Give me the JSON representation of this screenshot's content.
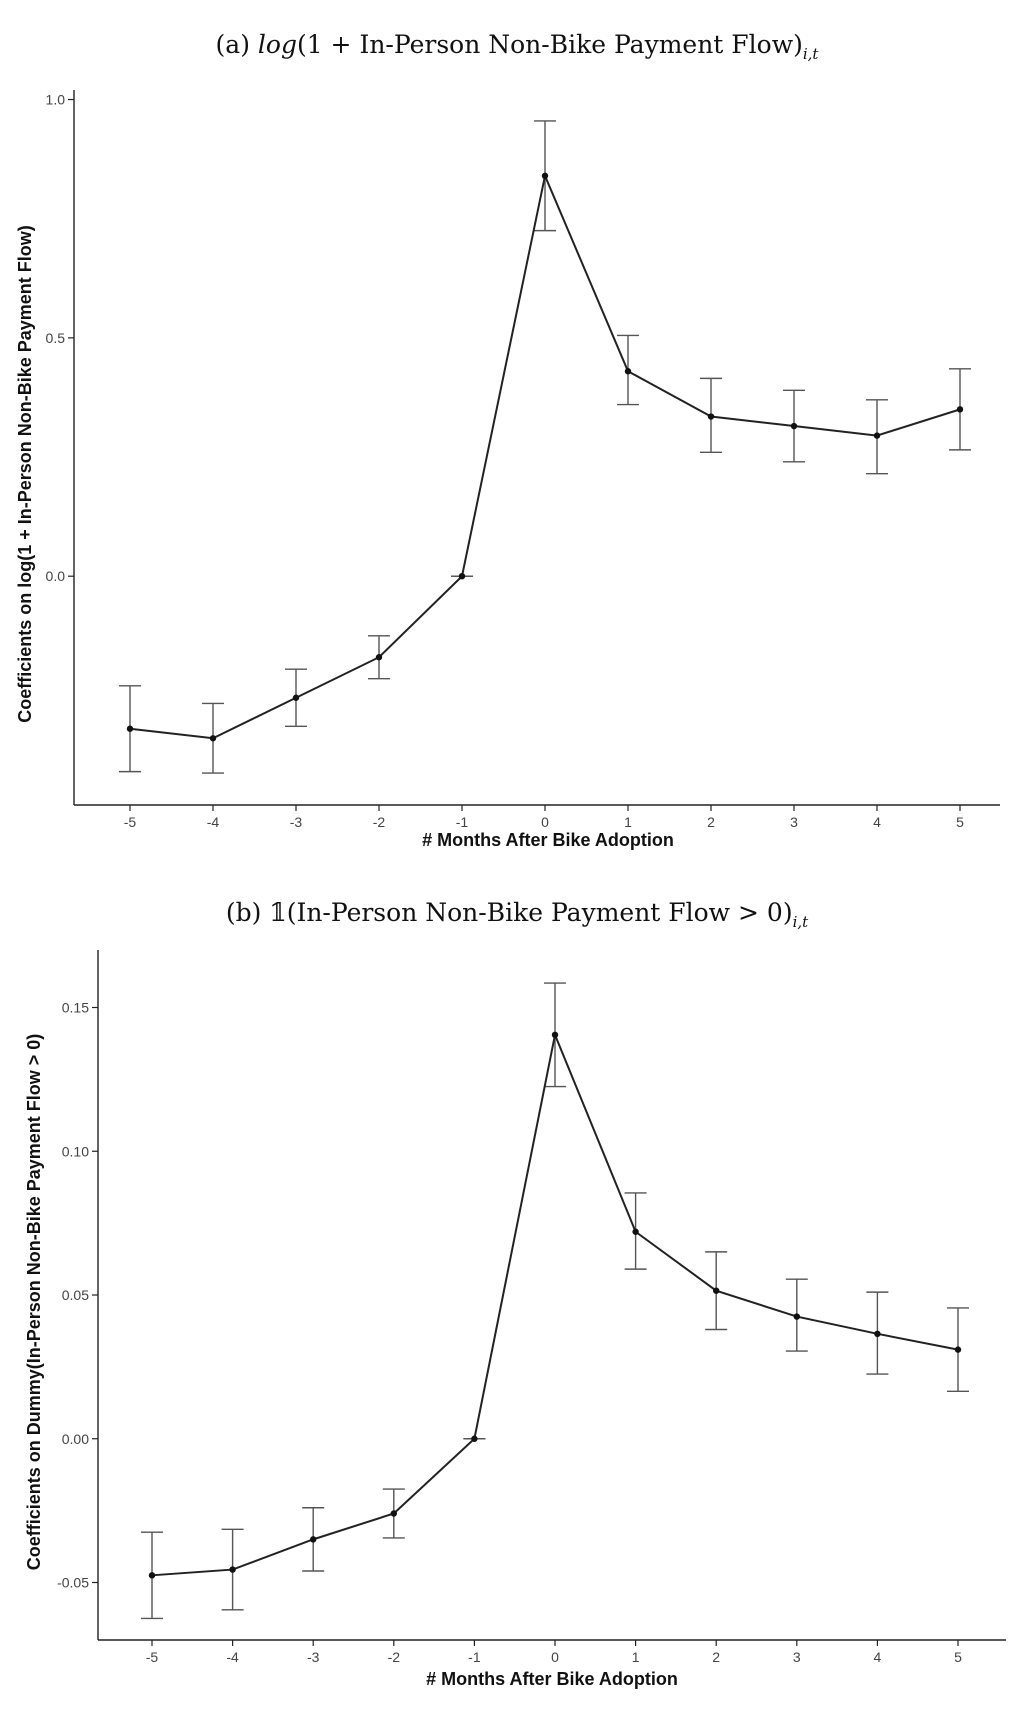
{
  "panels": [
    {
      "caption_prefix": "(a) ",
      "caption_math": "log",
      "caption_text": "(1 + In-Person Non-Bike Payment Flow)",
      "caption_sub": "i,t"
    },
    {
      "caption_prefix": "(b) ",
      "caption_math": "𝟙",
      "caption_text": "(In-Person Non-Bike Payment Flow > 0)",
      "caption_sub": "i,t"
    }
  ],
  "chart_data": [
    {
      "type": "line",
      "title": "",
      "xlabel": "# Months After Bike Adoption",
      "ylabel": "Coefficients on log(1 + In-Person Non-Bike Payment Flow)",
      "x": [
        -5,
        -4,
        -3,
        -2,
        -1,
        0,
        1,
        2,
        3,
        4,
        5
      ],
      "x_tick_labels": [
        "-5",
        "-4",
        "-3",
        "-2",
        "-1",
        "0",
        "1",
        "2",
        "3",
        "4",
        "5"
      ],
      "y_ticks": [
        0.0,
        0.5,
        1.0
      ],
      "y_tick_labels": [
        "0.0",
        "0.5",
        "1.0"
      ],
      "ylim": [
        -0.48,
        1.02
      ],
      "grid": false,
      "series": [
        {
          "values": [
            -0.32,
            -0.34,
            -0.255,
            -0.17,
            0.0,
            0.84,
            0.43,
            0.335,
            0.315,
            0.295,
            0.35
          ],
          "ci_low": [
            -0.41,
            -0.413,
            -0.315,
            -0.215,
            0.0,
            0.725,
            0.36,
            0.26,
            0.24,
            0.215,
            0.265
          ],
          "ci_high": [
            -0.23,
            -0.267,
            -0.195,
            -0.125,
            0.0,
            0.955,
            0.505,
            0.415,
            0.39,
            0.37,
            0.435
          ]
        }
      ]
    },
    {
      "type": "line",
      "title": "",
      "xlabel": "# Months After Bike Adoption",
      "ylabel": "Coefficients on Dummy(In-Person Non-Bike Payment Flow > 0)",
      "x": [
        -5,
        -4,
        -3,
        -2,
        -1,
        0,
        1,
        2,
        3,
        4,
        5
      ],
      "x_tick_labels": [
        "-5",
        "-4",
        "-3",
        "-2",
        "-1",
        "0",
        "1",
        "2",
        "3",
        "4",
        "5"
      ],
      "y_ticks": [
        -0.05,
        0.0,
        0.05,
        0.1,
        0.15
      ],
      "y_tick_labels": [
        "-0.05",
        "0.00",
        "0.05",
        "0.10",
        "0.15"
      ],
      "ylim": [
        -0.07,
        0.17
      ],
      "grid": false,
      "series": [
        {
          "values": [
            -0.0475,
            -0.0455,
            -0.035,
            -0.026,
            0.0,
            0.1405,
            0.072,
            0.0515,
            0.0425,
            0.0365,
            0.031
          ],
          "ci_low": [
            -0.0625,
            -0.0595,
            -0.046,
            -0.0345,
            0.0,
            0.1225,
            0.059,
            0.038,
            0.0305,
            0.0225,
            0.0165
          ],
          "ci_high": [
            -0.0325,
            -0.0315,
            -0.024,
            -0.0175,
            0.0,
            0.1585,
            0.0855,
            0.065,
            0.0555,
            0.051,
            0.0455
          ]
        }
      ]
    }
  ]
}
